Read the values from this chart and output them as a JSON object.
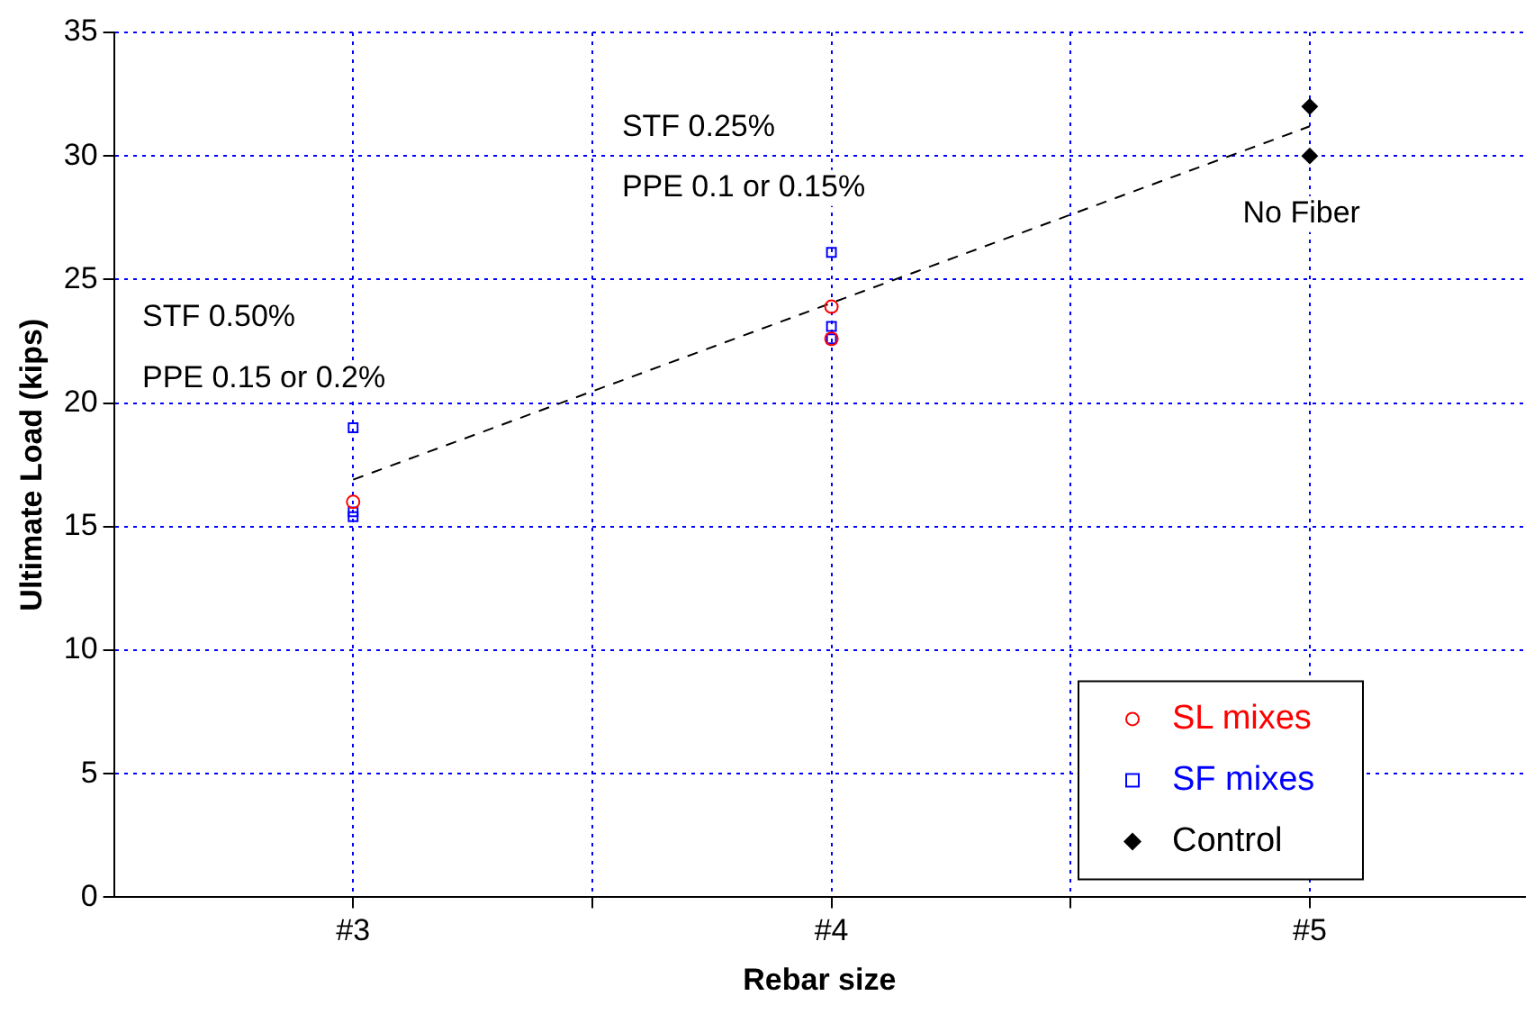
{
  "chart_data": {
    "type": "scatter",
    "xlabel": "Rebar size",
    "ylabel": "Ultimate Load (kips)",
    "xlim": [
      2.5,
      5.45
    ],
    "xticks": [
      {
        "value": 3,
        "label": "#3"
      },
      {
        "value": 3.5,
        "label": null
      },
      {
        "value": 4,
        "label": "#4"
      },
      {
        "value": 4.5,
        "label": null
      },
      {
        "value": 5,
        "label": "#5"
      }
    ],
    "ylim": [
      0,
      35
    ],
    "yticks": [
      0,
      5,
      10,
      15,
      20,
      25,
      30,
      35
    ],
    "grid": true,
    "legend": "bottom right",
    "series": [
      {
        "name": "SL mixes",
        "color": "#ff0000",
        "marker": "circle",
        "x": [
          3,
          4,
          4
        ],
        "values": [
          16.0,
          23.9,
          22.6
        ]
      },
      {
        "name": "SF mixes",
        "color": "#0000ff",
        "marker": "square",
        "x": [
          3,
          3,
          3,
          4,
          4,
          4
        ],
        "values": [
          19.0,
          15.6,
          15.4,
          26.1,
          23.1,
          22.6
        ]
      },
      {
        "name": "Control",
        "color": "#000000",
        "marker": "diamond",
        "x": [
          5,
          5
        ],
        "values": [
          32.0,
          30.0
        ]
      },
      {
        "type": "line",
        "color": "#000000",
        "line_style": "dashed",
        "marker": "none",
        "x": [
          3,
          5
        ],
        "values": [
          16.9,
          31.2
        ]
      }
    ],
    "annotations": [
      "STF 0.50%",
      "PPE 0.15 or 0.2%",
      "STF 0.25%",
      "PPE 0.1 or 0.15%",
      "No Fiber"
    ]
  }
}
